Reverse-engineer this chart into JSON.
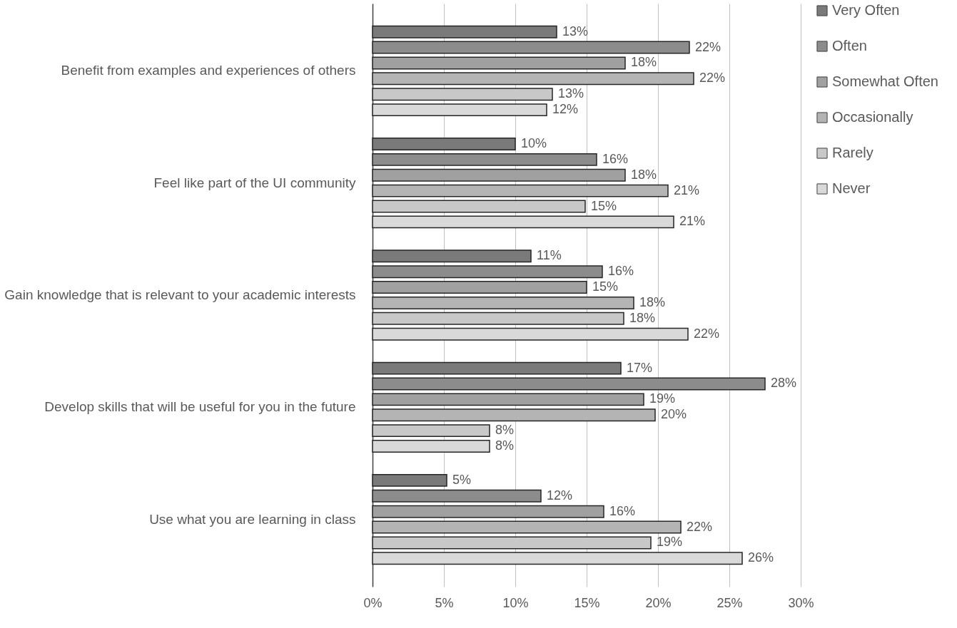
{
  "chart_data": {
    "type": "bar",
    "orientation": "horizontal",
    "categories": [
      "Benefit from examples and experiences of others",
      "Feel like part of the UI community",
      "Gain knowledge that is relevant to your academic interests",
      "Develop skills that will be useful for you in the future",
      "Use what you are learning in class"
    ],
    "series": [
      {
        "name": "Very Often",
        "color": "#7a7a7a",
        "values": [
          12.9,
          10.0,
          11.1,
          17.4,
          5.2
        ],
        "value_labels": [
          "13%",
          "10%",
          "11%",
          "17%",
          "5%"
        ]
      },
      {
        "name": "Often",
        "color": "#8c8c8c",
        "values": [
          22.2,
          15.7,
          16.1,
          27.5,
          11.8
        ],
        "value_labels": [
          "22%",
          "16%",
          "16%",
          "28%",
          "12%"
        ]
      },
      {
        "name": "Somewhat Often",
        "color": "#a0a0a0",
        "values": [
          17.7,
          17.7,
          15.0,
          19.0,
          16.2
        ],
        "value_labels": [
          "18%",
          "18%",
          "15%",
          "19%",
          "16%"
        ]
      },
      {
        "name": "Occasionally",
        "color": "#b4b4b4",
        "values": [
          22.5,
          20.7,
          18.3,
          19.8,
          21.6
        ],
        "value_labels": [
          "22%",
          "21%",
          "18%",
          "20%",
          "22%"
        ]
      },
      {
        "name": "Rarely",
        "color": "#c8c8c8",
        "values": [
          12.6,
          14.9,
          17.6,
          8.2,
          19.5
        ],
        "value_labels": [
          "13%",
          "15%",
          "18%",
          "8%",
          "19%"
        ]
      },
      {
        "name": "Never",
        "color": "#d9d9d9",
        "values": [
          12.2,
          21.1,
          22.1,
          8.2,
          25.9
        ],
        "value_labels": [
          "12%",
          "21%",
          "22%",
          "8%",
          "26%"
        ]
      }
    ],
    "xlim": [
      0,
      30
    ],
    "xticks": [
      {
        "value": 0,
        "label": "0%"
      },
      {
        "value": 5,
        "label": "5%"
      },
      {
        "value": 10,
        "label": "10%"
      },
      {
        "value": 15,
        "label": "15%"
      },
      {
        "value": 20,
        "label": "20%"
      },
      {
        "value": 25,
        "label": "25%"
      },
      {
        "value": 30,
        "label": "30%"
      }
    ],
    "grid": "x",
    "legend": "right"
  }
}
